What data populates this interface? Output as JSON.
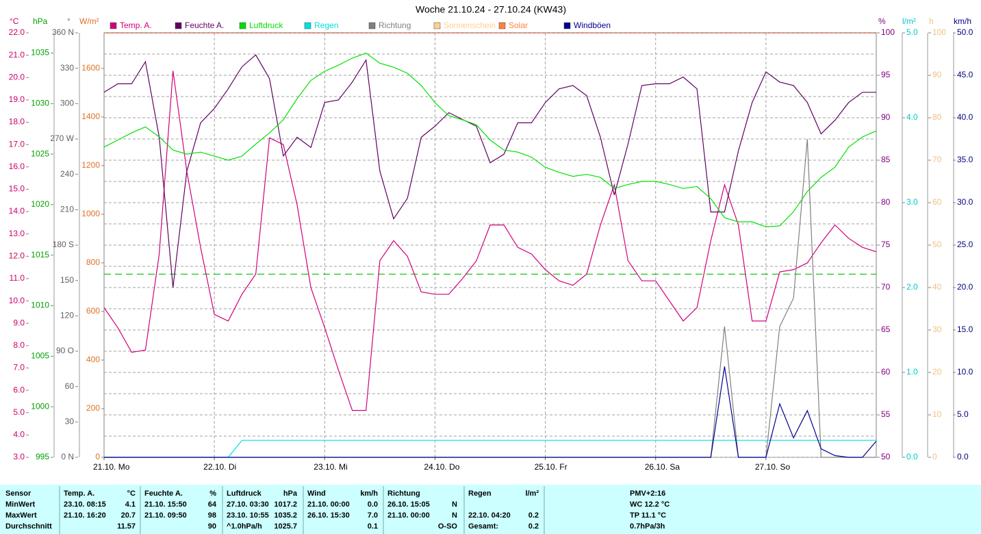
{
  "chart_data": {
    "type": "line",
    "title": "Woche 21.10.24 - 27.10.24 (KW43)",
    "xlim": [
      0,
      168
    ],
    "xticks": [
      {
        "value": 0,
        "label": "21.10.  Mo"
      },
      {
        "value": 24,
        "label": "22.10.  Di"
      },
      {
        "value": 48,
        "label": "23.10.  Mi"
      },
      {
        "value": 72,
        "label": "24.10.  Do"
      },
      {
        "value": 96,
        "label": "25.10.  Fr"
      },
      {
        "value": 120,
        "label": "26.10.  Sa"
      },
      {
        "value": 144,
        "label": "27.10.  So"
      }
    ],
    "x": [
      0,
      3,
      6,
      9,
      12,
      15,
      18,
      21,
      24,
      27,
      30,
      33,
      36,
      39,
      42,
      45,
      48,
      51,
      54,
      57,
      60,
      63,
      66,
      69,
      72,
      75,
      78,
      81,
      84,
      87,
      90,
      93,
      96,
      99,
      102,
      105,
      108,
      111,
      114,
      117,
      120,
      123,
      126,
      129,
      132,
      135,
      138,
      141,
      144,
      147,
      150,
      153,
      156,
      159,
      162,
      165,
      168
    ],
    "grid": true,
    "axes": [
      {
        "label": "°C",
        "color": "#cc0066",
        "ylim": [
          3,
          22
        ],
        "yticks": [
          {
            "value": 3,
            "label": "3.0"
          },
          {
            "value": 4,
            "label": "4.0"
          },
          {
            "value": 5,
            "label": "5.0"
          },
          {
            "value": 6,
            "label": "6.0"
          },
          {
            "value": 7,
            "label": "7.0"
          },
          {
            "value": 8,
            "label": "8.0"
          },
          {
            "value": 9,
            "label": "9.0"
          },
          {
            "value": 10,
            "label": "10.0"
          },
          {
            "value": 11,
            "label": "11.0"
          },
          {
            "value": 12,
            "label": "12.0"
          },
          {
            "value": 13,
            "label": "13.0"
          },
          {
            "value": 14,
            "label": "14.0"
          },
          {
            "value": 15,
            "label": "15.0"
          },
          {
            "value": 16,
            "label": "16.0"
          },
          {
            "value": 17,
            "label": "17.0"
          },
          {
            "value": 18,
            "label": "18.0"
          },
          {
            "value": 19,
            "label": "19.0"
          },
          {
            "value": 20,
            "label": "20.0"
          },
          {
            "value": 21,
            "label": "21.0"
          },
          {
            "value": 22,
            "label": "22.0"
          }
        ]
      },
      {
        "label": "hPa",
        "color": "#00a000",
        "ylim": [
          995,
          1037
        ],
        "yticks": [
          995,
          1000,
          1005,
          1010,
          1015,
          1020,
          1025,
          1030,
          1035
        ]
      },
      {
        "label": "°",
        "color": "#606060",
        "ylim": [
          0,
          360
        ],
        "yticks": [
          {
            "value": 0,
            "label": "0 N"
          },
          30,
          60,
          {
            "value": 90,
            "label": "90 O"
          },
          120,
          150,
          {
            "value": 180,
            "label": "180 S"
          },
          210,
          240,
          {
            "value": 270,
            "label": "270 W"
          },
          300,
          330,
          {
            "value": 360,
            "label": "360 N"
          }
        ]
      },
      {
        "label": "W/m²",
        "color": "#e07020",
        "ylim": [
          0,
          1746
        ],
        "yticks": [
          0,
          200,
          400,
          600,
          800,
          1000,
          1200,
          1400,
          1600
        ]
      },
      {
        "label": "%",
        "color": "#800080",
        "ylim": [
          50,
          100
        ],
        "yticks": [
          50,
          55,
          60,
          65,
          70,
          75,
          80,
          85,
          90,
          95,
          100
        ]
      },
      {
        "label": "l/m²",
        "color": "#00c8c8",
        "ylim": [
          0,
          5
        ],
        "yticks": [
          {
            "value": 0,
            "label": "0.0"
          },
          {
            "value": 1,
            "label": "1.0"
          },
          {
            "value": 2,
            "label": "2.0"
          },
          {
            "value": 3,
            "label": "3.0"
          },
          {
            "value": 4,
            "label": "4.0"
          },
          {
            "value": 5,
            "label": "5.0"
          }
        ]
      },
      {
        "label": "h",
        "color": "#f0c080",
        "ylim": [
          0,
          100
        ],
        "yticks": [
          0,
          10,
          20,
          30,
          40,
          50,
          60,
          70,
          80,
          90,
          100
        ]
      },
      {
        "label": "km/h",
        "color": "#000080",
        "ylim": [
          0,
          50
        ],
        "yticks": [
          {
            "value": 0,
            "label": "0.0"
          },
          {
            "value": 5,
            "label": "5.0"
          },
          {
            "value": 10,
            "label": "10.0"
          },
          {
            "value": 15,
            "label": "15.0"
          },
          {
            "value": 20,
            "label": "20.0"
          },
          {
            "value": 25,
            "label": "25.0"
          },
          {
            "value": 30,
            "label": "30.0"
          },
          {
            "value": 35,
            "label": "35.0"
          },
          {
            "value": 40,
            "label": "40.0"
          },
          {
            "value": 45,
            "label": "45.0"
          },
          {
            "value": 50,
            "label": "50.0"
          }
        ]
      }
    ],
    "series": [
      {
        "name": "Temp. A.",
        "color": "#d0007a",
        "axis": "°C",
        "values": [
          9.7,
          8.8,
          7.7,
          7.8,
          12.1,
          20.3,
          15.8,
          12.4,
          9.4,
          9.1,
          10.3,
          11.2,
          17.3,
          17.0,
          14.3,
          10.6,
          8.8,
          6.9,
          5.1,
          5.1,
          11.8,
          12.7,
          12.0,
          10.4,
          10.3,
          10.3,
          11.0,
          11.8,
          13.4,
          13.4,
          12.4,
          12.1,
          11.4,
          10.9,
          10.7,
          11.2,
          13.4,
          15.2,
          11.8,
          10.9,
          10.9,
          10.0,
          9.1,
          9.7,
          12.7,
          15.2,
          13.4,
          9.1,
          9.1,
          11.3,
          11.4,
          11.7,
          12.6,
          13.4,
          12.8,
          12.4,
          12.2
        ]
      },
      {
        "name": "Feuchte A.",
        "color": "#600060",
        "axis": "%",
        "values": [
          93.0,
          94.0,
          94.0,
          96.6,
          87.7,
          70.0,
          83.7,
          89.4,
          91.1,
          93.4,
          96.0,
          97.4,
          94.6,
          85.5,
          87.7,
          86.5,
          91.8,
          92.1,
          94.2,
          96.8,
          83.7,
          78.1,
          80.5,
          87.7,
          89.0,
          90.6,
          89.8,
          89.0,
          84.7,
          85.7,
          89.4,
          89.4,
          91.8,
          93.4,
          93.8,
          92.6,
          87.7,
          80.9,
          86.9,
          93.8,
          94.0,
          94.0,
          94.8,
          93.4,
          78.9,
          78.9,
          86.1,
          91.8,
          95.4,
          94.2,
          93.8,
          91.8,
          88.1,
          89.7,
          91.8,
          93.0,
          93.0
        ]
      },
      {
        "name": "Luftdruck",
        "color": "#00e000",
        "axis": "hPa",
        "values": [
          1025.7,
          1026.4,
          1027.1,
          1027.7,
          1026.7,
          1025.4,
          1025.0,
          1025.2,
          1024.8,
          1024.4,
          1024.8,
          1026.0,
          1027.1,
          1028.4,
          1030.5,
          1032.3,
          1033.2,
          1033.8,
          1034.5,
          1035.0,
          1034.0,
          1033.6,
          1033.0,
          1031.8,
          1030.1,
          1028.8,
          1028.4,
          1027.9,
          1026.4,
          1025.4,
          1025.2,
          1024.7,
          1023.7,
          1023.2,
          1022.8,
          1023.0,
          1022.7,
          1021.6,
          1022.0,
          1022.3,
          1022.3,
          1022.0,
          1021.6,
          1021.8,
          1020.6,
          1018.7,
          1018.3,
          1018.3,
          1017.8,
          1017.9,
          1019.3,
          1021.3,
          1022.7,
          1023.7,
          1025.7,
          1026.7,
          1027.3
        ]
      },
      {
        "name": "Regen",
        "color": "#00e0e0",
        "axis": "l/m²",
        "values": [
          0,
          0,
          0,
          0,
          0,
          0,
          0,
          0,
          0,
          0,
          0.2,
          0.2,
          0.2,
          0.2,
          0.2,
          0.2,
          0.2,
          0.2,
          0.2,
          0.2,
          0.2,
          0.2,
          0.2,
          0.2,
          0.2,
          0.2,
          0.2,
          0.2,
          0.2,
          0.2,
          0.2,
          0.2,
          0.2,
          0.2,
          0.2,
          0.2,
          0.2,
          0.2,
          0.2,
          0.2,
          0.2,
          0.2,
          0.2,
          0.2,
          0.2,
          0.2,
          0.2,
          0.2,
          0.2,
          0.2,
          0.2,
          0.2,
          0.2,
          0.2,
          0.2,
          0.2,
          0.2
        ]
      },
      {
        "name": "Richtung",
        "color": "#808080",
        "axis": "°",
        "values": [
          0,
          0,
          0,
          0,
          0,
          0,
          0,
          0,
          0,
          0,
          0,
          0,
          0,
          0,
          0,
          0,
          0,
          0,
          0,
          0,
          0,
          0,
          0,
          0,
          0,
          0,
          0,
          0,
          0,
          0,
          0,
          0,
          0,
          0,
          0,
          0,
          0,
          0,
          0,
          0,
          0,
          0,
          0,
          0,
          0,
          111,
          0,
          0,
          0,
          111,
          135,
          270,
          0,
          0,
          0,
          0,
          0
        ]
      },
      {
        "name": "Sonnenschein",
        "color": "#ffd090",
        "axis": "h"
      },
      {
        "name": "Solar",
        "color": "#ff8040",
        "axis": "W/m²"
      },
      {
        "name": "Windböen",
        "color": "#000090",
        "axis": "km/h",
        "values": [
          0,
          0,
          0,
          0,
          0,
          0,
          0,
          0,
          0,
          0,
          0,
          0,
          0,
          0,
          0,
          0,
          0,
          0,
          0,
          0,
          0,
          0,
          0,
          0,
          0,
          0,
          0,
          0,
          0,
          0,
          0,
          0,
          0,
          0,
          0,
          0,
          0,
          0,
          0,
          0,
          0,
          0,
          0,
          0,
          0,
          10.7,
          0,
          0,
          0,
          6.3,
          2.3,
          5.5,
          1.0,
          0.2,
          0,
          0,
          1.9
        ]
      }
    ],
    "reference_line": {
      "value": 11.2,
      "axis": "°C",
      "color": "#00c000"
    }
  },
  "table": {
    "sensor": {
      "title": "Sensor",
      "rows": [
        "MinWert",
        "MaxWert",
        "Durchschnitt"
      ]
    },
    "groups": [
      {
        "title": "Temp. A.",
        "unit": "°C",
        "min": [
          "23.10.  08:15",
          "4.1"
        ],
        "max": [
          "21.10.  16:20",
          "20.7"
        ],
        "avg": [
          "11.57"
        ]
      },
      {
        "title": "Feuchte A.",
        "unit": "%",
        "min": [
          "21.10.  15:50",
          "64"
        ],
        "max": [
          "21.10.  09:50",
          "98"
        ],
        "avg": [
          "90"
        ]
      },
      {
        "title": "Luftdruck",
        "unit": "hPa",
        "min": [
          "27.10.  03:30",
          "1017.2"
        ],
        "max": [
          "23.10.  10:55",
          "1035.2"
        ],
        "avg": [
          "^1.0hPa/h",
          "1025.7"
        ]
      },
      {
        "title": "Wind",
        "unit": "km/h",
        "min": [
          "21.10.  00:00",
          "0.0"
        ],
        "max": [
          "26.10.  15:30",
          "7.0"
        ],
        "avg": [
          "0.1"
        ]
      },
      {
        "title": "Richtung",
        "min": [
          "26.10.  15:05",
          "N"
        ],
        "max": [
          "21.10.  00:00",
          "N"
        ],
        "avg": [
          "O-SO"
        ]
      },
      {
        "title": "Regen",
        "unit": "l/m²",
        "max": [
          "22.10.  04:20",
          "0.2"
        ],
        "avg": [
          "Gesamt:",
          "0.2"
        ]
      }
    ],
    "pmv": {
      "title": "PMV+2:16",
      "rows": [
        "WC 12.2 °C",
        "TP 11.1 °C",
        "0.7hPa/3h"
      ]
    }
  }
}
